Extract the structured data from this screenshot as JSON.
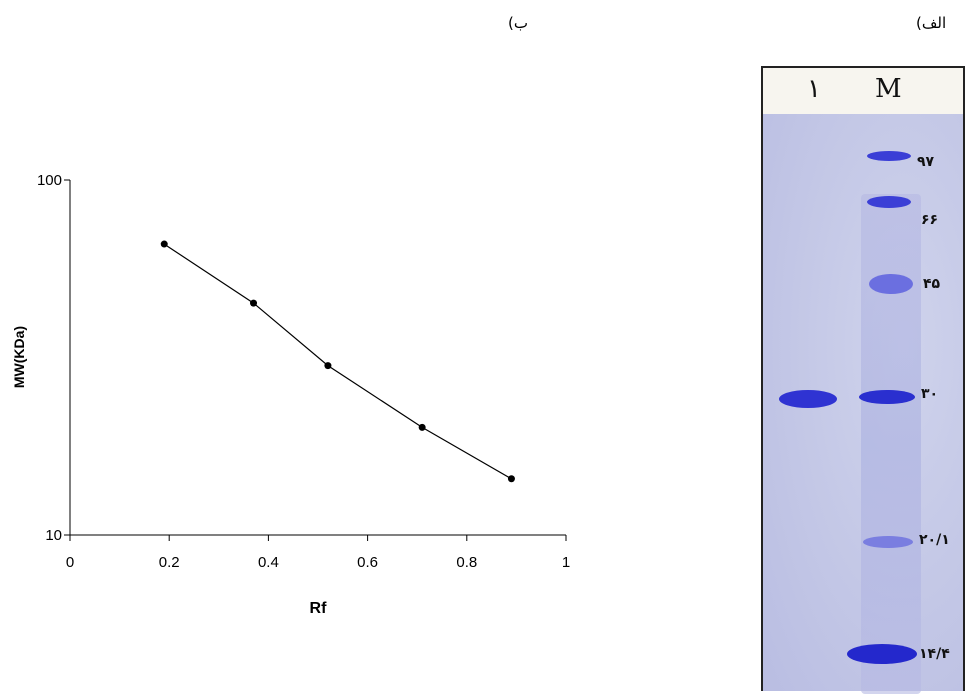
{
  "panels": {
    "left_label": "ب)",
    "right_label": "الف)"
  },
  "chart_data": {
    "type": "scatter",
    "title": "",
    "xlabel": "Rf",
    "ylabel": "MW(KDa)",
    "xlim": [
      0,
      1
    ],
    "ylim": [
      10,
      100
    ],
    "y_scale": "log",
    "x_ticks": [
      "0",
      "0.2",
      "0.4",
      "0.6",
      "0.8",
      "1"
    ],
    "y_ticks": [
      "10",
      "100"
    ],
    "grid": false,
    "series": [
      {
        "points": [
          {
            "x": 0.19,
            "y": 66
          },
          {
            "x": 0.37,
            "y": 45
          },
          {
            "x": 0.52,
            "y": 30
          },
          {
            "x": 0.71,
            "y": 20.1
          },
          {
            "x": 0.89,
            "y": 14.4
          }
        ],
        "line": true,
        "color": "#000000"
      }
    ]
  },
  "gel": {
    "lane_labels": [
      "۱",
      "M"
    ],
    "marker_labels": [
      "۹۷",
      "۶۶",
      "۴۵",
      "۳۰",
      "۲۰/۱",
      "۱۴/۴"
    ],
    "band_color": "#2a2fcf"
  }
}
